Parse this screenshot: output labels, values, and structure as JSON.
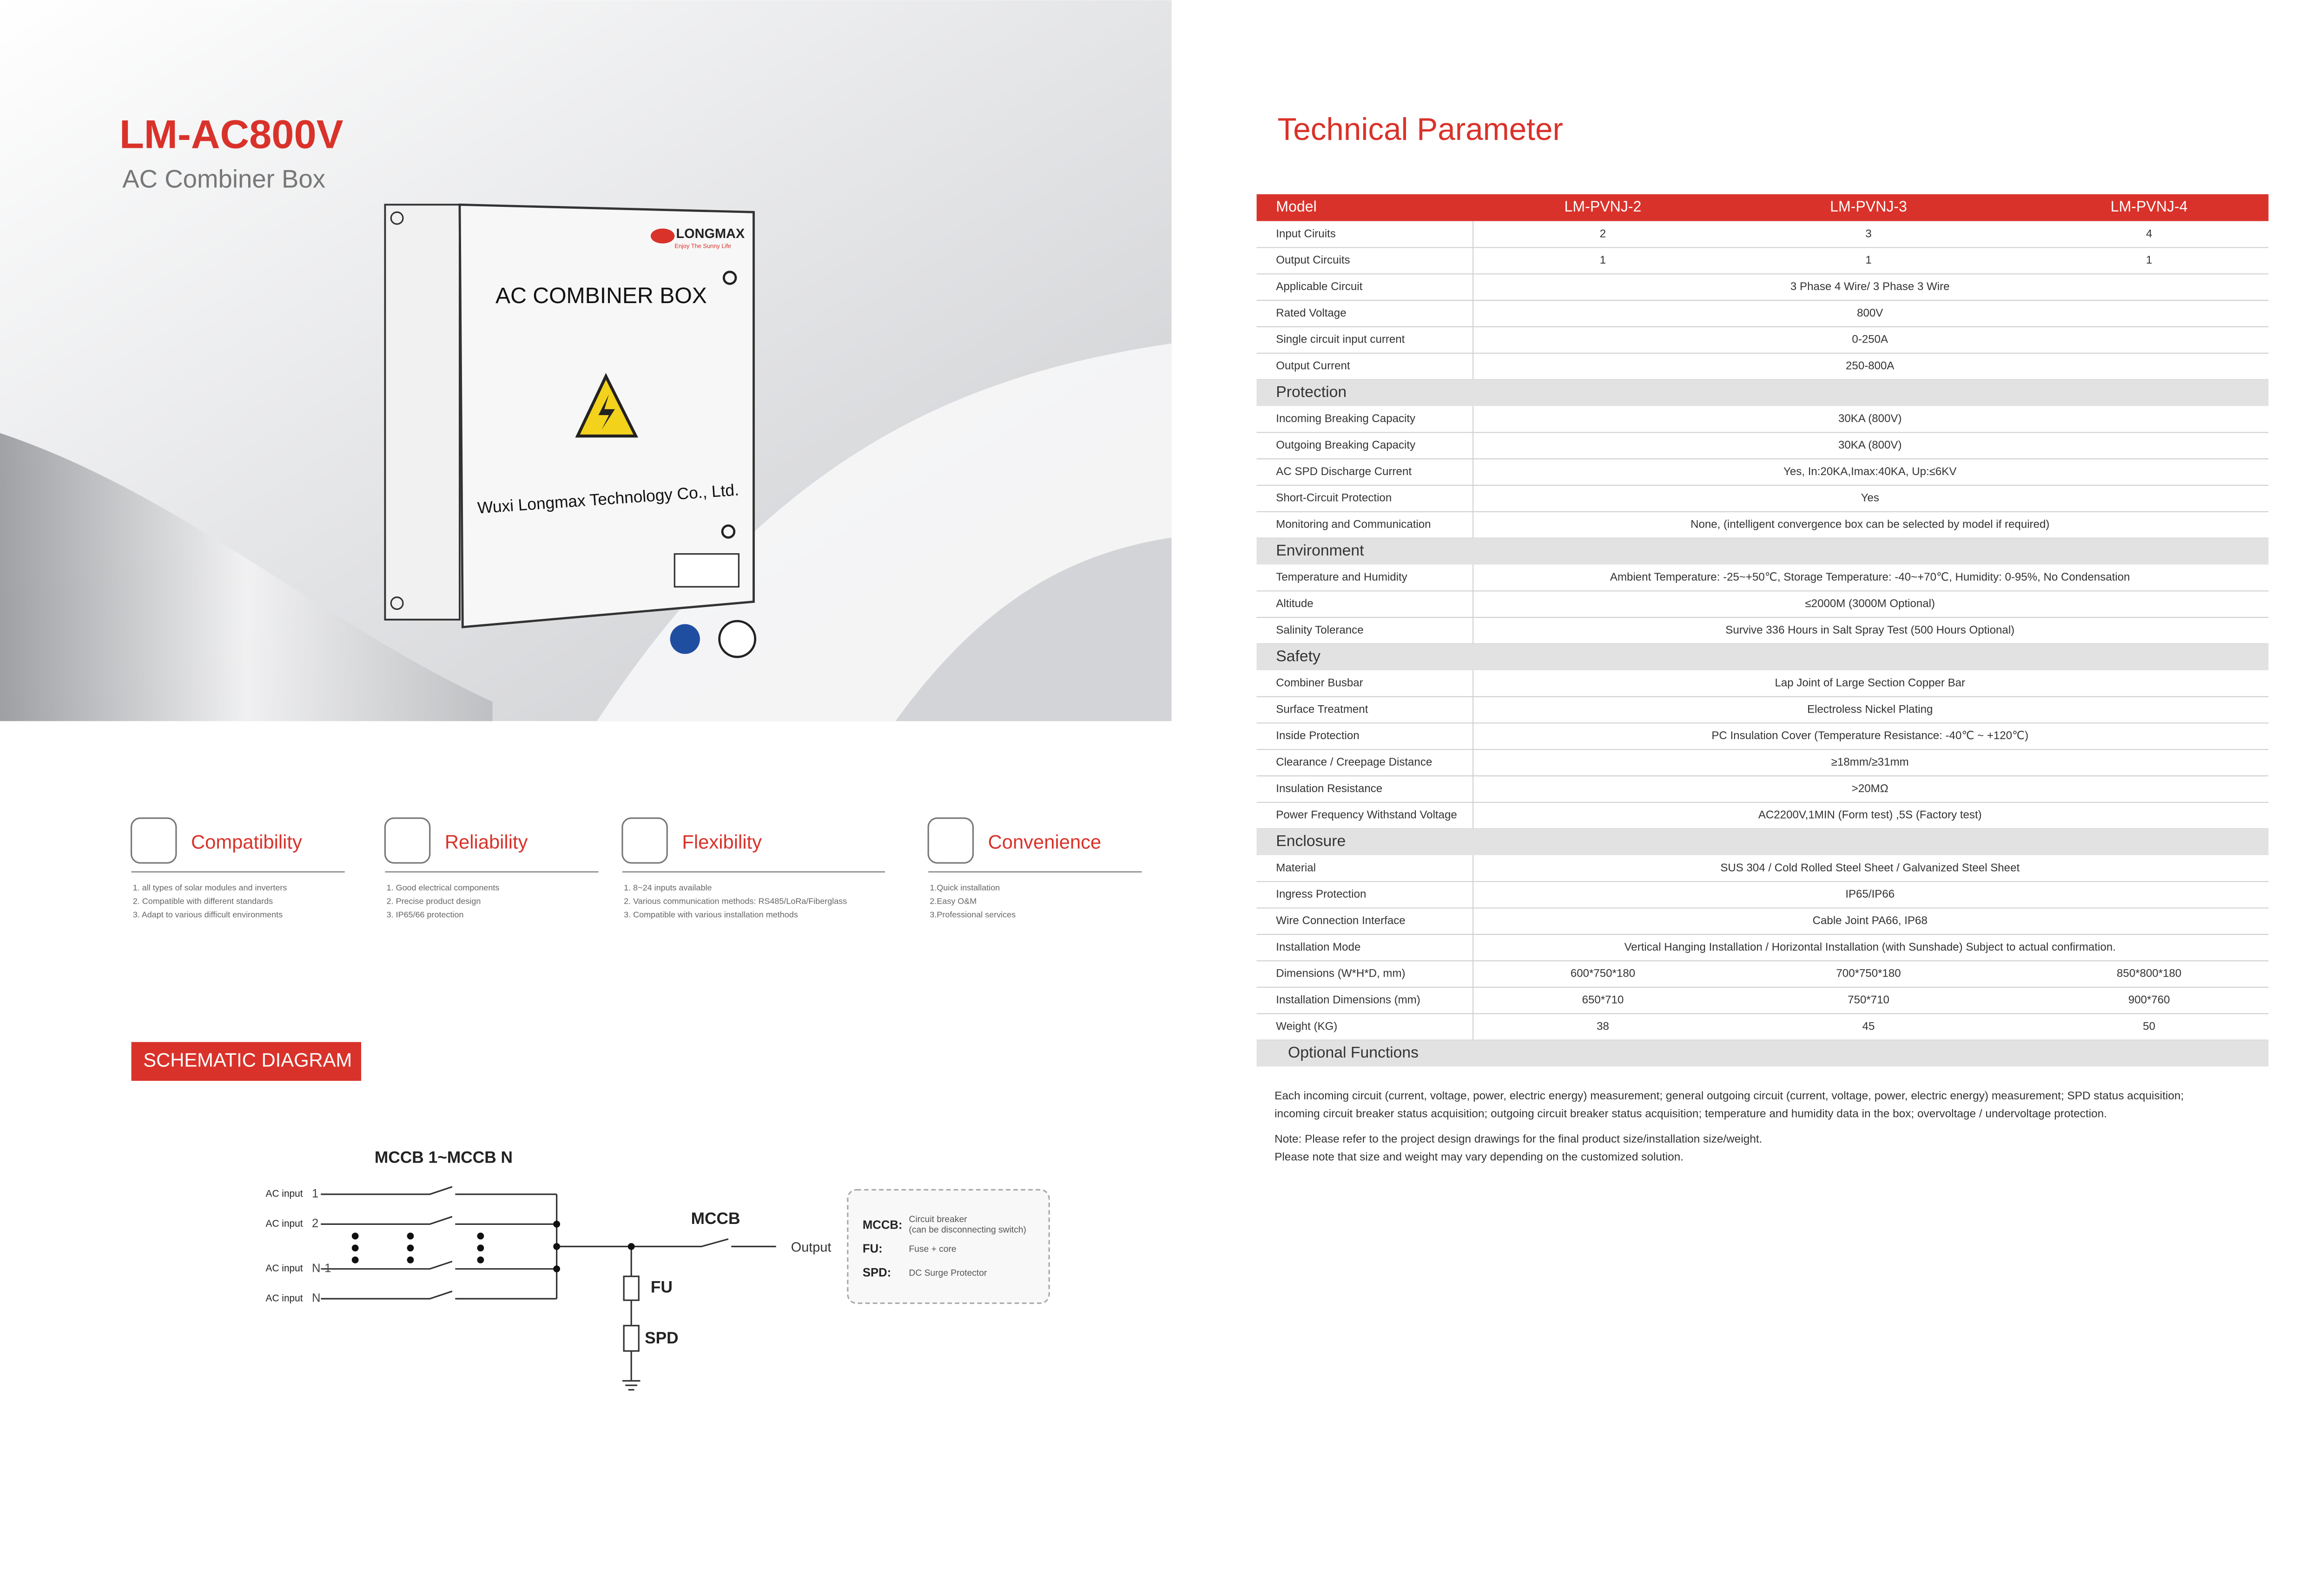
{
  "header": {
    "model": "LM-AC800V",
    "subtitle": "AC Combiner Box"
  },
  "product": {
    "label": "AC COMBINER BOX",
    "maker": "Wuxi Longmax Technology Co., Ltd.",
    "brand": "LONGMAX",
    "slogan": "Enjoy The Sunny Life"
  },
  "features": [
    {
      "title": "Compatibility",
      "items": [
        "1. all types of solar modules and inverters",
        "2. Compatible with different standards",
        "3. Adapt to various difficult environments"
      ]
    },
    {
      "title": "Reliability",
      "items": [
        "1. Good electrical components",
        "2. Precise product design",
        "3. IP65/66 protection"
      ]
    },
    {
      "title": "Flexibility",
      "items": [
        "1. 8~24 inputs available",
        "2. Various communication methods: RS485/LoRa/Fiberglass",
        "3. Compatible with various installation methods"
      ]
    },
    {
      "title": "Convenience",
      "items": [
        "1.Quick installation",
        "2.Easy O&M",
        "3.Professional services"
      ]
    }
  ],
  "schematic": {
    "title": "SCHEMATIC DIAGRAM",
    "breakers": "MCCB  1~MCCB  N",
    "input_label": "AC input",
    "inputs": [
      "1",
      "2",
      "N-1",
      "N"
    ],
    "main": "MCCB",
    "output": "Output",
    "fuse": "FU",
    "spd": "SPD",
    "legend": [
      {
        "key": "MCCB:",
        "text": [
          "Circuit breaker",
          "(can be disconnecting switch)"
        ]
      },
      {
        "key": "FU:",
        "text": [
          "Fuse + core"
        ]
      },
      {
        "key": "SPD:",
        "text": [
          "DC Surge Protector"
        ]
      }
    ]
  },
  "spec": {
    "title": "Technical Parameter",
    "header": [
      "Model",
      "LM-PVNJ-2",
      "LM-PVNJ-3",
      "LM-PVNJ-4"
    ],
    "rows": [
      {
        "label": "Input Ciruits",
        "values": [
          "2",
          "3",
          "4"
        ]
      },
      {
        "label": "Output Circuits",
        "values": [
          "1",
          "1",
          "1"
        ]
      },
      {
        "label": "Applicable Circuit",
        "values": [
          "3 Phase 4 Wire/ 3 Phase 3 Wire"
        ]
      },
      {
        "label": "Rated Voltage",
        "values": [
          "800V"
        ]
      },
      {
        "label": "Single circuit input current",
        "values": [
          "0-250A"
        ]
      },
      {
        "label": "Output  Current",
        "values": [
          "250-800A"
        ]
      },
      {
        "section": "Protection"
      },
      {
        "label": "Incoming Breaking Capacity",
        "values": [
          "30KA (800V)"
        ]
      },
      {
        "label": "Outgoing Breaking Capacity",
        "values": [
          "30KA (800V)"
        ]
      },
      {
        "label": "AC SPD Discharge Current",
        "values": [
          "Yes, In:20KA,Imax:40KA, Up:≤6KV"
        ]
      },
      {
        "label": "Short-Circuit Protection",
        "values": [
          "Yes"
        ]
      },
      {
        "label": "Monitoring and Communication",
        "values": [
          "None, (intelligent convergence box can be selected by model if required)"
        ]
      },
      {
        "section": "Environment"
      },
      {
        "label": "Temperature and Humidity",
        "values": [
          "Ambient Temperature: -25~+50℃, Storage Temperature: -40~+70℃, Humidity: 0-95%, No Condensation"
        ]
      },
      {
        "label": "Altitude",
        "values": [
          "≤2000M (3000M Optional)"
        ]
      },
      {
        "label": "Salinity Tolerance",
        "values": [
          "Survive 336 Hours in Salt Spray Test (500 Hours Optional)"
        ]
      },
      {
        "section": "Safety"
      },
      {
        "label": "Combiner Busbar",
        "values": [
          "Lap Joint of Large Section Copper Bar"
        ]
      },
      {
        "label": "Surface Treatment",
        "values": [
          "Electroless Nickel Plating"
        ]
      },
      {
        "label": "Inside Protection",
        "values": [
          "PC Insulation Cover (Temperature Resistance: -40℃ ~ +120℃)"
        ]
      },
      {
        "label": "Clearance / Creepage Distance",
        "values": [
          "≥18mm/≥31mm"
        ]
      },
      {
        "label": "Insulation Resistance",
        "values": [
          ">20MΩ"
        ]
      },
      {
        "label": "Power Frequency Withstand Voltage",
        "values": [
          "AC2200V,1MIN (Form test) ,5S (Factory test)"
        ]
      },
      {
        "section": "Enclosure"
      },
      {
        "label": "Material",
        "values": [
          "SUS 304 / Cold Rolled Steel Sheet / Galvanized Steel Sheet"
        ]
      },
      {
        "label": "Ingress Protection",
        "values": [
          "IP65/IP66"
        ]
      },
      {
        "label": "Wire Connection Interface",
        "values": [
          "Cable Joint PA66, IP68"
        ]
      },
      {
        "label": "Installation Mode",
        "values": [
          "Vertical Hanging Installation / Horizontal Installation (with Sunshade) Subject to actual confirmation."
        ]
      },
      {
        "label": "Dimensions (W*H*D, mm)",
        "values": [
          "600*750*180",
          "700*750*180",
          "850*800*180"
        ]
      },
      {
        "label": "Installation Dimensions (mm)",
        "values": [
          "650*710",
          "750*710",
          "900*760"
        ]
      },
      {
        "label": "Weight (KG)",
        "values": [
          "38",
          "45",
          "50"
        ]
      },
      {
        "section": "Optional Functions"
      }
    ],
    "optional": [
      "Each incoming circuit (current, voltage, power, electric energy) measurement; general outgoing circuit (current, voltage, power, electric energy) measurement; SPD status acquisition;",
      "incoming circuit breaker status acquisition; outgoing circuit breaker status acquisition; temperature and humidity data in the box; overvoltage / undervoltage protection."
    ],
    "notes": [
      "Note: Please refer to the project design drawings for the final product size/installation size/weight.",
      "Please note that size and weight may vary depending on the customized solution."
    ]
  }
}
